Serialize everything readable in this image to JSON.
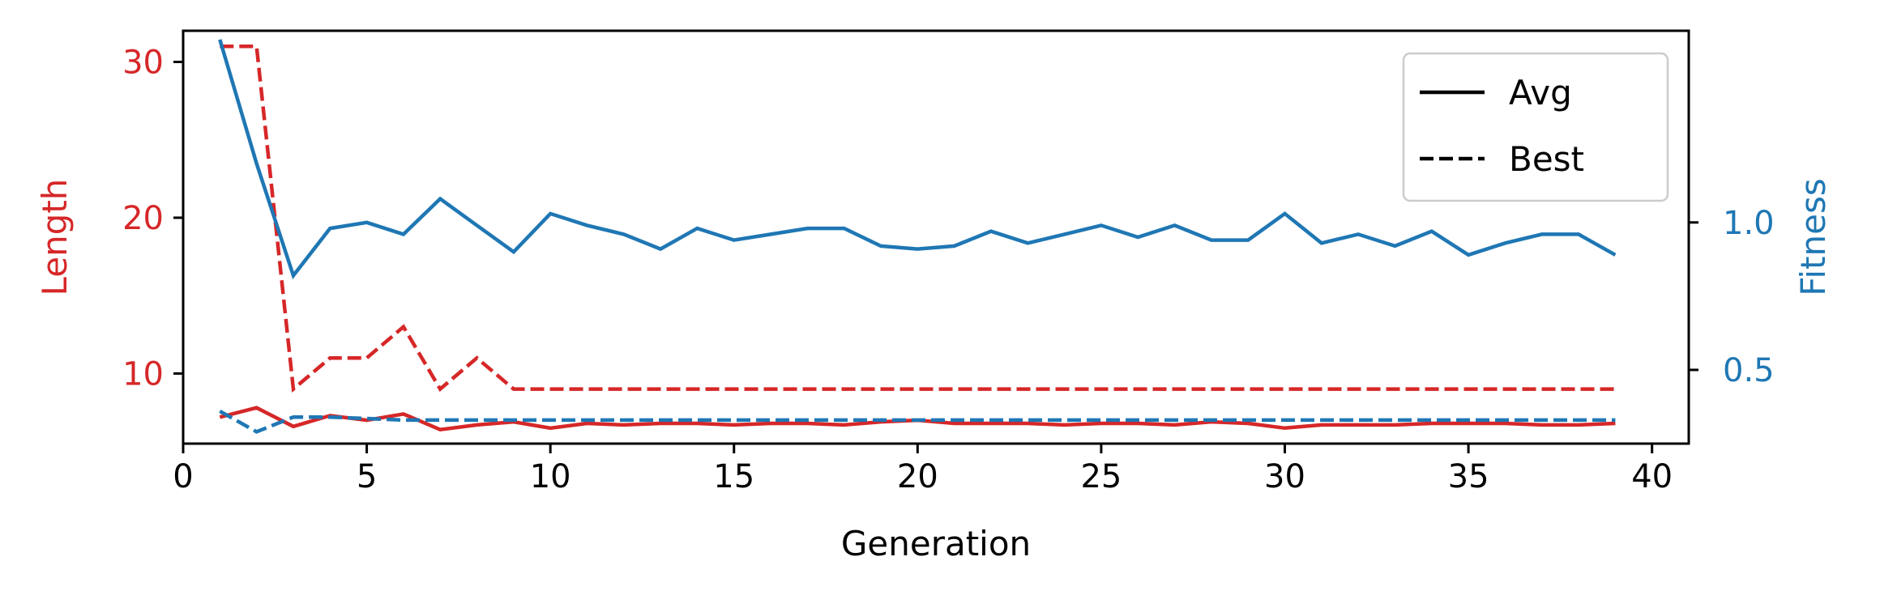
{
  "chart_data": {
    "type": "line",
    "xlabel": "Generation",
    "xlim": [
      0,
      41
    ],
    "xticks": [
      0,
      5,
      10,
      15,
      20,
      25,
      30,
      35,
      40
    ],
    "left_axis": {
      "label": "Length",
      "color": "#d62728",
      "ylim": [
        5.5,
        32
      ],
      "ticks": [
        10,
        20,
        30
      ]
    },
    "right_axis": {
      "label": "Fitness",
      "color": "#1f77b4",
      "ylim": [
        0.25,
        1.65
      ],
      "ticks": [
        0.5,
        1.0
      ],
      "tick_labels": [
        "0.5",
        "1.0"
      ]
    },
    "legend": {
      "position": "top-right",
      "entries": [
        {
          "label": "Avg",
          "style": "solid"
        },
        {
          "label": "Best",
          "style": "dashed"
        }
      ]
    },
    "x": [
      1,
      2,
      3,
      4,
      5,
      6,
      7,
      8,
      9,
      10,
      11,
      12,
      13,
      14,
      15,
      16,
      17,
      18,
      19,
      20,
      21,
      22,
      23,
      24,
      25,
      26,
      27,
      28,
      29,
      30,
      31,
      32,
      33,
      34,
      35,
      36,
      37,
      38,
      39
    ],
    "series": [
      {
        "metric": "Length",
        "stat": "Avg",
        "axis": "left",
        "style": "solid",
        "color": "#d62728",
        "values": [
          7.2,
          7.8,
          6.6,
          7.3,
          7.0,
          7.4,
          6.4,
          6.7,
          6.9,
          6.5,
          6.8,
          6.7,
          6.8,
          6.8,
          6.7,
          6.8,
          6.8,
          6.7,
          6.9,
          7.0,
          6.8,
          6.8,
          6.8,
          6.7,
          6.8,
          6.8,
          6.7,
          6.9,
          6.8,
          6.5,
          6.7,
          6.7,
          6.7,
          6.8,
          6.8,
          6.8,
          6.7,
          6.7,
          6.8
        ]
      },
      {
        "metric": "Length",
        "stat": "Best",
        "axis": "left",
        "style": "dashed",
        "color": "#d62728",
        "values": [
          31,
          31,
          9,
          11,
          11,
          13,
          9,
          11,
          9,
          9,
          9,
          9,
          9,
          9,
          9,
          9,
          9,
          9,
          9,
          9,
          9,
          9,
          9,
          9,
          9,
          9,
          9,
          9,
          9,
          9,
          9,
          9,
          9,
          9,
          9,
          9,
          9,
          9,
          9
        ]
      },
      {
        "metric": "Fitness",
        "stat": "Avg",
        "axis": "right",
        "style": "solid",
        "color": "#1f77b4",
        "values": [
          1.62,
          1.2,
          0.82,
          0.98,
          1.0,
          0.96,
          1.08,
          0.99,
          0.9,
          1.03,
          0.99,
          0.96,
          0.91,
          0.98,
          0.94,
          0.96,
          0.98,
          0.98,
          0.92,
          0.91,
          0.92,
          0.97,
          0.93,
          0.96,
          0.99,
          0.95,
          0.99,
          0.94,
          0.94,
          1.03,
          0.93,
          0.96,
          0.92,
          0.97,
          0.89,
          0.93,
          0.96,
          0.96,
          0.89
        ]
      },
      {
        "metric": "Fitness",
        "stat": "Best",
        "axis": "right",
        "style": "dashed",
        "color": "#1f77b4",
        "values": [
          0.36,
          0.29,
          0.34,
          0.34,
          0.335,
          0.33,
          0.33,
          0.33,
          0.33,
          0.33,
          0.33,
          0.33,
          0.33,
          0.33,
          0.33,
          0.33,
          0.33,
          0.33,
          0.33,
          0.33,
          0.33,
          0.33,
          0.33,
          0.33,
          0.33,
          0.33,
          0.33,
          0.33,
          0.33,
          0.33,
          0.33,
          0.33,
          0.33,
          0.33,
          0.33,
          0.33,
          0.33,
          0.33,
          0.33
        ]
      }
    ]
  }
}
